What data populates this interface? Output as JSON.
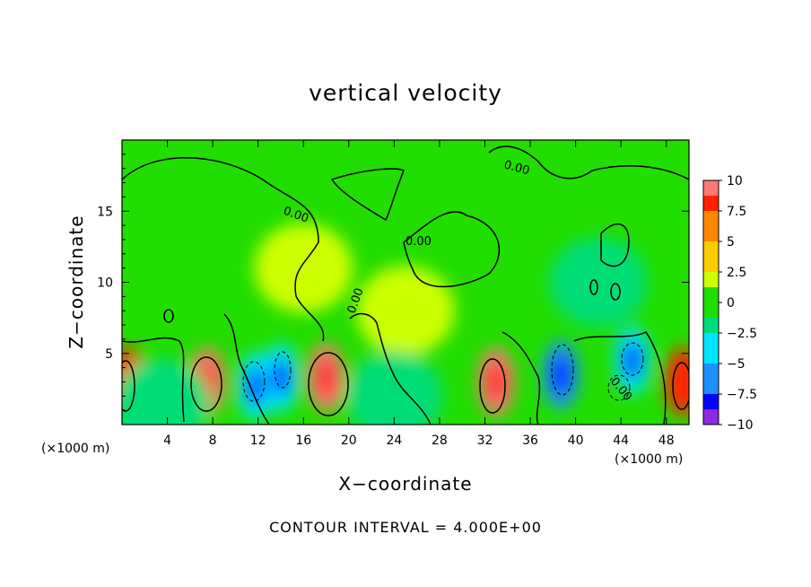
{
  "chart_data": {
    "type": "heatmap",
    "title": "vertical velocity",
    "xlabel": "X−coordinate",
    "ylabel": "Z−coordinate",
    "x_unit": "(×1000 m)",
    "x_unit_right": "(×1000 m)",
    "footnote": "CONTOUR INTERVAL = 4.000E+00",
    "xlim": [
      0,
      50
    ],
    "ylim": [
      0,
      20
    ],
    "xticks": [
      "4",
      "8",
      "12",
      "16",
      "20",
      "24",
      "28",
      "32",
      "36",
      "40",
      "44",
      "48"
    ],
    "yticks": [
      "5",
      "10",
      "15"
    ],
    "colorbar": {
      "ticks": [
        "10",
        "7.5",
        "5",
        "2.5",
        "0",
        "−2.5",
        "−5",
        "−7.5",
        "−10"
      ],
      "min": -10,
      "max": 10,
      "colors": [
        "#8a2be2",
        "#0000ff",
        "#1e90ff",
        "#00e5ff",
        "#00dd77",
        "#22dd00",
        "#ccff00",
        "#ffcc00",
        "#ff8800",
        "#ff2200",
        "#ff7777"
      ]
    },
    "contour_labels": [
      "0.00",
      "0.00",
      "0.00",
      "0.00",
      "0.00"
    ],
    "cells": [
      {
        "x": 0.5,
        "z": 3,
        "v": 8
      },
      {
        "x": 7.5,
        "z": 3,
        "v": 9
      },
      {
        "x": 11.8,
        "z": 2.7,
        "v": -5
      },
      {
        "x": 14,
        "z": 3.3,
        "v": -4
      },
      {
        "x": 18,
        "z": 3.3,
        "v": 9
      },
      {
        "x": 33,
        "z": 3,
        "v": 9
      },
      {
        "x": 38.7,
        "z": 3.5,
        "v": -7
      },
      {
        "x": 45,
        "z": 4.5,
        "v": -5
      },
      {
        "x": 49.5,
        "z": 3,
        "v": 8
      },
      {
        "x": 16,
        "z": 11,
        "v": 2.5
      },
      {
        "x": 25,
        "z": 8,
        "v": 1.5
      },
      {
        "x": 42,
        "z": 10,
        "v": -1.5
      },
      {
        "x": 3.5,
        "z": 1.5,
        "v": -2.5
      },
      {
        "x": 24,
        "z": 2,
        "v": -2
      }
    ]
  }
}
